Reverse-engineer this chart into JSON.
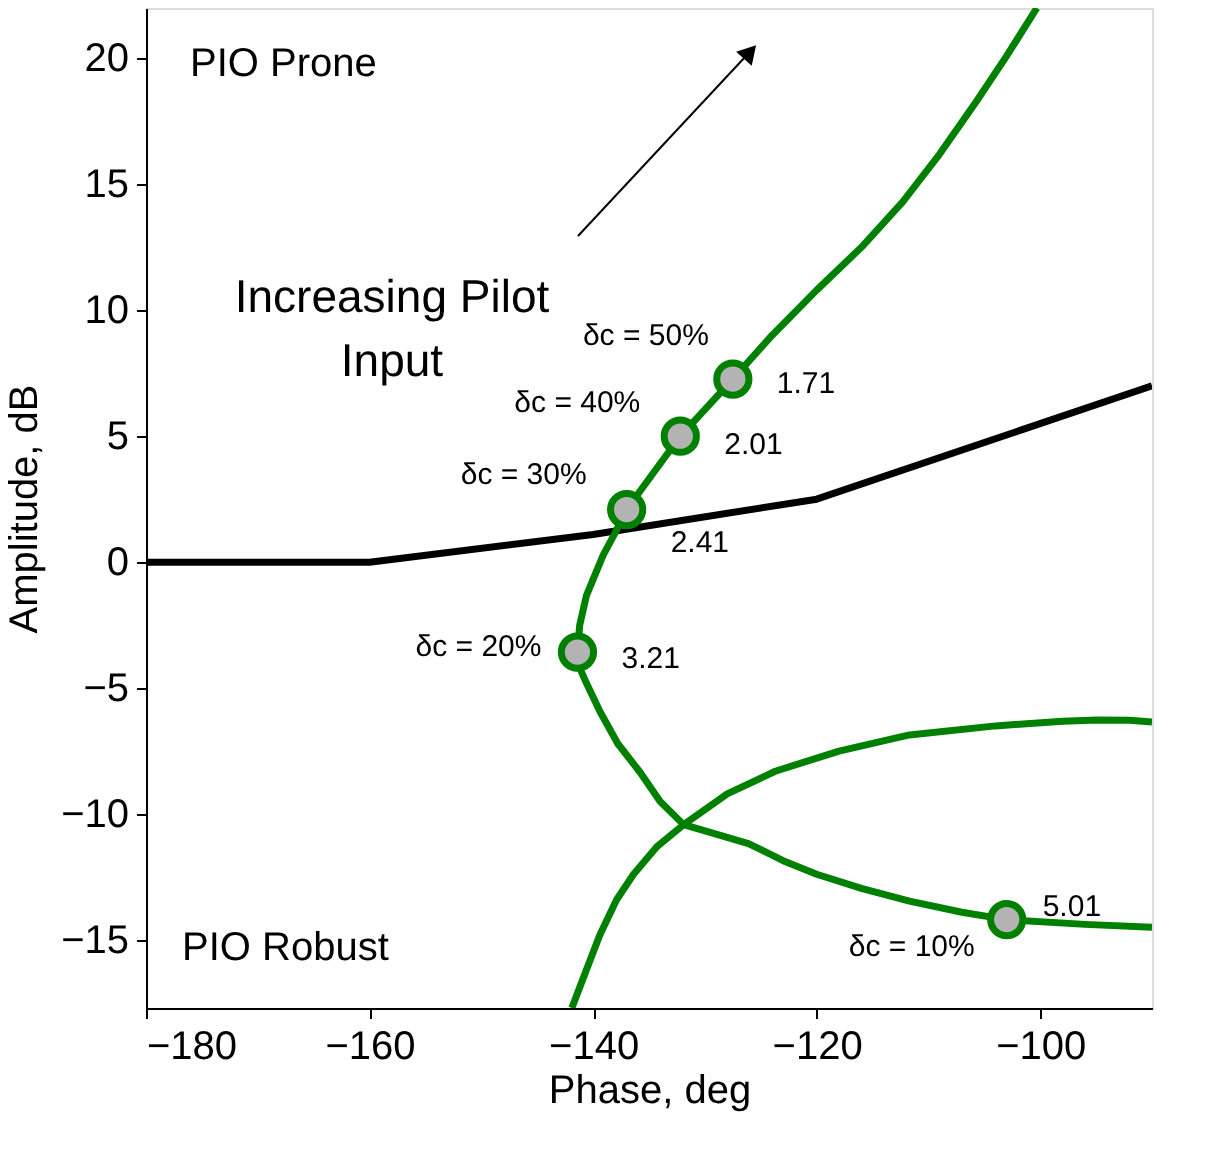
{
  "chart_data": {
    "type": "line",
    "xlabel": "Phase, deg",
    "ylabel": "Amplitude, dB",
    "xlim": [
      -180,
      -90
    ],
    "ylim": [
      -17.7,
      22
    ],
    "xticks": [
      {
        "value": -180,
        "label": "−180"
      },
      {
        "value": -160,
        "label": "−160"
      },
      {
        "value": -140,
        "label": "−140"
      },
      {
        "value": -120,
        "label": "−120"
      },
      {
        "value": -100,
        "label": "−100"
      }
    ],
    "yticks": [
      {
        "value": -15,
        "label": "−15"
      },
      {
        "value": -10,
        "label": "−10"
      },
      {
        "value": -5,
        "label": "−5"
      },
      0,
      5,
      10,
      15,
      20
    ],
    "grid": false,
    "marker": "none",
    "line_style": "solid",
    "series": [
      {
        "color": "#000000",
        "x": [
          -180,
          -160,
          -140,
          -120,
          -90
        ],
        "values": [
          0,
          0,
          1.1,
          2.5,
          7
        ]
      },
      {
        "color": "#008000",
        "x": [
          -90,
          -96,
          -103,
          -107,
          -111.7,
          -116,
          -120,
          -123,
          -126.1,
          -129,
          -131.9,
          -134,
          -135.8,
          -137.8,
          -139.4,
          -140.6,
          -141.3,
          -141.4,
          -141.2,
          -140.6,
          -139.1,
          -138.1,
          -137,
          -134.6,
          -132.2,
          -129.8,
          -127.5,
          -124,
          -120,
          -116,
          -112.3,
          -109,
          -105.7,
          -103,
          -100.3
        ],
        "values": [
          -14.49,
          -14.38,
          -14.19,
          -13.9,
          -13.46,
          -12.95,
          -12.39,
          -11.85,
          -11.17,
          -10.8,
          -10.42,
          -9.5,
          -8.34,
          -7.2,
          -5.92,
          -4.8,
          -4.1,
          -3.57,
          -2.5,
          -1.33,
          0.28,
          1.1,
          2.09,
          3.55,
          5.0,
          6.15,
          7.27,
          9.0,
          10.8,
          12.5,
          14.3,
          16.2,
          18.3,
          20.1,
          22
        ]
      },
      {
        "color": "#008000",
        "x": [
          -141.9,
          -140.7,
          -139.4,
          -137.9,
          -136.4,
          -134.3,
          -131.9,
          -128,
          -123.7,
          -118,
          -111.7,
          -104,
          -98,
          -94.9,
          -92,
          -90
        ],
        "values": [
          -17.7,
          -16.3,
          -14.8,
          -13.4,
          -12.4,
          -11.3,
          -10.42,
          -9.2,
          -8.3,
          -7.5,
          -6.86,
          -6.5,
          -6.32,
          -6.27,
          -6.28,
          -6.35
        ]
      },
      {
        "type": "scatter",
        "color": "#b3b3b3",
        "marker": "circle",
        "x": [
          -127.5,
          -132.2,
          -137,
          -141.4,
          -103
        ],
        "values": [
          7.27,
          5.0,
          2.09,
          -3.57,
          -14.19
        ]
      }
    ],
    "annotations": [
      "PIO Prone",
      "PIO Robust",
      "Increasing Pilot\nInput",
      {
        "text": "δc = 50%",
        "x": -127.5,
        "y": 7.27
      },
      {
        "text": "1.71",
        "x": -127.5,
        "y": 7.27
      },
      {
        "text": "δc = 40%",
        "x": -132.2,
        "y": 5.0
      },
      {
        "text": "2.01",
        "x": -132.2,
        "y": 5.0
      },
      {
        "text": "δc = 30%",
        "x": -137,
        "y": 2.09
      },
      {
        "text": "2.41",
        "x": -137,
        "y": 2.09
      },
      {
        "text": "δc = 20%",
        "x": -141.4,
        "y": -3.57
      },
      {
        "text": "3.21",
        "x": -141.4,
        "y": -3.57
      },
      {
        "text": "δc = 10%",
        "x": -103,
        "y": -14.19
      },
      {
        "text": "5.01",
        "x": -103,
        "y": -14.19
      }
    ]
  }
}
